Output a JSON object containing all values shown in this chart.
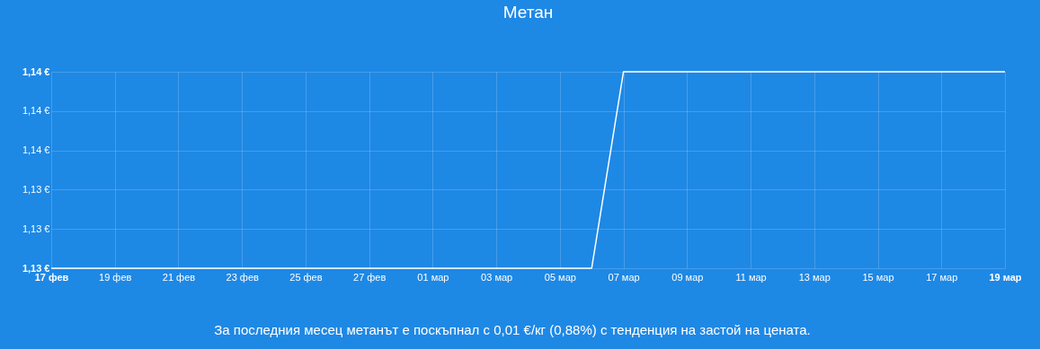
{
  "chart_data": {
    "type": "line",
    "title": "Метан",
    "x": [
      "--02-17",
      "--03-06",
      "--03-07",
      "--03-19"
    ],
    "series": [
      {
        "color": "#ffffff",
        "values": [
          1.13,
          1.13,
          1.14,
          1.14
        ]
      }
    ],
    "xlim": [
      "--02-17",
      "--03-19"
    ],
    "xticks": [
      {
        "value": "--02-17",
        "label": "17 фев"
      },
      {
        "value": "--02-19",
        "label": "19 фев"
      },
      {
        "value": "--02-21",
        "label": "21 фев"
      },
      {
        "value": "--02-23",
        "label": "23 фев"
      },
      {
        "value": "--02-25",
        "label": "25 фев"
      },
      {
        "value": "--02-27",
        "label": "27 фев"
      },
      {
        "value": "--03-01",
        "label": "01 мар"
      },
      {
        "value": "--03-03",
        "label": "03 мар"
      },
      {
        "value": "--03-05",
        "label": "05 мар"
      },
      {
        "value": "--03-07",
        "label": "07 мар"
      },
      {
        "value": "--03-09",
        "label": "09 мар"
      },
      {
        "value": "--03-11",
        "label": "11 мар"
      },
      {
        "value": "--03-13",
        "label": "13 мар"
      },
      {
        "value": "--03-15",
        "label": "15 мар"
      },
      {
        "value": "--03-17",
        "label": "17 мар"
      },
      {
        "value": "--03-19",
        "label": "19 мар"
      }
    ],
    "ylim": [
      1.13,
      1.14
    ],
    "yticks": [
      {
        "value": 1.13,
        "label": "1,13 €"
      },
      {
        "value": 1.132,
        "label": "1,13 €"
      },
      {
        "value": 1.134,
        "label": "1,13 €"
      },
      {
        "value": 1.136,
        "label": "1,14 €"
      },
      {
        "value": 1.138,
        "label": "1,14 €"
      },
      {
        "value": 1.14,
        "label": "1,14 €"
      }
    ],
    "grid": true,
    "marker": "none",
    "line_style": "solid",
    "annotations": [
      "За последния месец метанът е поскъпнал с 0,01 €/кг (0,88%) с тенденция на застой на цената."
    ]
  }
}
